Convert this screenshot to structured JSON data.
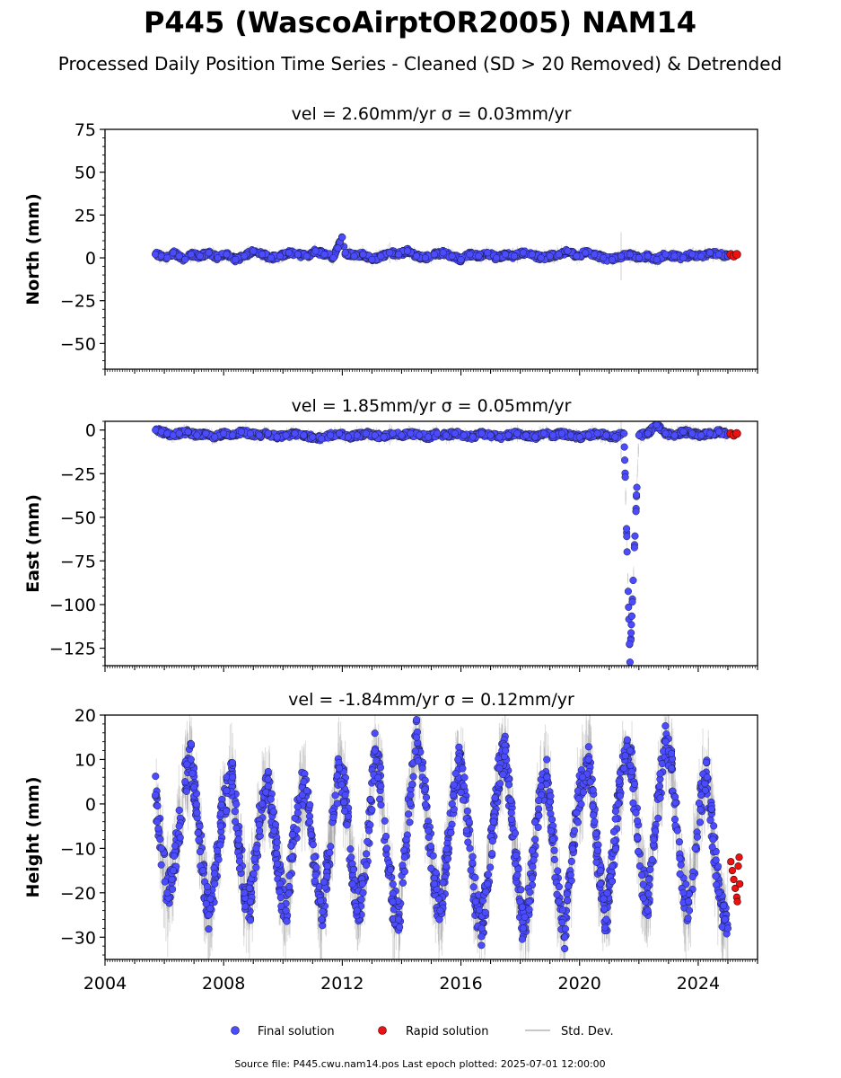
{
  "figure": {
    "title": "P445 (WascoAirptOR2005) NAM14",
    "subtitle": "Processed Daily Position Time Series - Cleaned (SD > 20 Removed) & Detrended",
    "footer": "Source file: P445.cwu.nam14.pos  Last epoch plotted: 2025-07-01 12:00:00"
  },
  "legend": {
    "final": "Final solution",
    "rapid": "Rapid solution",
    "std": "Std. Dev."
  },
  "colors": {
    "final": "#4b4bff",
    "rapid": "#ee1111",
    "std": "#9a9a9a",
    "marker_edge": "#1a1a3a"
  },
  "chart_data": [
    {
      "type": "scatter",
      "title": "vel = 2.60mm/yr   σ = 0.03mm/yr",
      "ylabel": "North (mm)",
      "xlim": [
        2004.0,
        2026.0
      ],
      "ylim": [
        -65,
        75
      ],
      "yticks": [
        -50,
        -25,
        0,
        25,
        50,
        75
      ],
      "series": [
        {
          "name": "Final solution",
          "x": [
            2005.7,
            2005.9,
            2006.1,
            2006.3,
            2006.5,
            2006.7,
            2006.9,
            2007.2,
            2007.5,
            2007.8,
            2008.1,
            2008.4,
            2008.7,
            2009.0,
            2009.3,
            2009.6,
            2009.9,
            2010.2,
            2010.5,
            2010.8,
            2011.1,
            2011.4,
            2011.7,
            2012.0,
            2012.1,
            2012.4,
            2012.7,
            2013.0,
            2013.3,
            2013.6,
            2013.9,
            2014.2,
            2014.5,
            2014.8,
            2015.1,
            2015.4,
            2015.7,
            2016.0,
            2016.3,
            2016.6,
            2016.9,
            2017.2,
            2017.5,
            2017.8,
            2018.1,
            2018.4,
            2018.7,
            2019.0,
            2019.3,
            2019.6,
            2019.9,
            2020.2,
            2020.5,
            2020.8,
            2021.1,
            2021.4,
            2021.7,
            2022.0,
            2022.3,
            2022.6,
            2022.9,
            2023.2,
            2023.5,
            2023.8,
            2024.1,
            2024.4,
            2024.7,
            2025.0
          ],
          "y": [
            2,
            1,
            0,
            3,
            1,
            -1,
            2,
            1,
            3,
            0,
            2,
            -1,
            1,
            4,
            2,
            0,
            1,
            3,
            2,
            1,
            4,
            2,
            0,
            12,
            3,
            1,
            2,
            -1,
            1,
            3,
            2,
            4,
            1,
            0,
            2,
            3,
            1,
            -1,
            2,
            1,
            3,
            0,
            2,
            1,
            3,
            2,
            0,
            1,
            2,
            4,
            1,
            3,
            2,
            0,
            -1,
            1,
            2,
            0,
            1,
            -1,
            2,
            1,
            0,
            2,
            1,
            3,
            2,
            1
          ]
        },
        {
          "name": "Rapid solution",
          "x": [
            2025.1,
            2025.2,
            2025.3
          ],
          "y": [
            2,
            1,
            2
          ]
        }
      ]
    },
    {
      "type": "scatter",
      "title": "vel = 1.85mm/yr   σ = 0.05mm/yr",
      "ylabel": "East (mm)",
      "xlim": [
        2004.0,
        2026.0
      ],
      "ylim": [
        -135,
        5
      ],
      "yticks": [
        -125,
        -100,
        -75,
        -50,
        -25,
        0
      ],
      "series": [
        {
          "name": "Final solution",
          "x": [
            2005.7,
            2005.9,
            2006.1,
            2006.3,
            2006.5,
            2006.8,
            2007.1,
            2007.4,
            2007.7,
            2008.0,
            2008.3,
            2008.6,
            2008.9,
            2009.2,
            2009.5,
            2009.8,
            2010.1,
            2010.4,
            2010.7,
            2011.0,
            2011.3,
            2011.6,
            2011.9,
            2012.2,
            2012.5,
            2012.8,
            2013.1,
            2013.4,
            2013.7,
            2014.0,
            2014.3,
            2014.6,
            2014.9,
            2015.2,
            2015.5,
            2015.8,
            2016.1,
            2016.4,
            2016.7,
            2017.0,
            2017.3,
            2017.6,
            2017.9,
            2018.2,
            2018.5,
            2018.8,
            2019.1,
            2019.4,
            2019.7,
            2020.0,
            2020.3,
            2020.6,
            2020.9,
            2021.2,
            2021.5,
            2021.7,
            2022.0,
            2022.3,
            2022.6,
            2022.9,
            2023.2,
            2023.5,
            2023.8,
            2024.1,
            2024.4,
            2024.7,
            2025.0
          ],
          "y": [
            0,
            -1,
            -2,
            -3,
            -2,
            -1,
            -3,
            -2,
            -4,
            -2,
            -3,
            -1,
            -2,
            -3,
            -2,
            -4,
            -3,
            -2,
            -3,
            -4,
            -5,
            -3,
            -2,
            -4,
            -3,
            -2,
            -3,
            -4,
            -2,
            -3,
            -2,
            -3,
            -4,
            -2,
            -3,
            -2,
            -3,
            -4,
            -2,
            -3,
            -4,
            -3,
            -2,
            -3,
            -4,
            -2,
            -3,
            -2,
            -3,
            -4,
            -3,
            -2,
            -3,
            -4,
            -2,
            -133,
            -3,
            -2,
            3,
            -2,
            -3,
            -1,
            -2,
            -3,
            -2,
            -1,
            -2
          ]
        },
        {
          "name": "Rapid solution",
          "x": [
            2025.1,
            2025.2,
            2025.3
          ],
          "y": [
            -2,
            -3,
            -2
          ]
        }
      ]
    },
    {
      "type": "scatter",
      "title": "vel = -1.84mm/yr   σ = 0.12mm/yr",
      "ylabel": "Height (mm)",
      "xlim": [
        2004.0,
        2026.0
      ],
      "ylim": [
        -35,
        20
      ],
      "yticks": [
        -30,
        -20,
        -10,
        0,
        10,
        20
      ],
      "xticks": [
        2004,
        2008,
        2012,
        2016,
        2020,
        2024
      ],
      "series": [
        {
          "name": "Final solution",
          "x": [
            2005.7,
            2005.9,
            2006.1,
            2006.3,
            2006.5,
            2006.7,
            2006.9,
            2007.1,
            2007.3,
            2007.5,
            2007.7,
            2007.9,
            2008.1,
            2008.3,
            2008.5,
            2008.7,
            2008.9,
            2009.1,
            2009.3,
            2009.5,
            2009.7,
            2009.9,
            2010.1,
            2010.3,
            2010.5,
            2010.7,
            2010.9,
            2011.1,
            2011.3,
            2011.5,
            2011.7,
            2011.9,
            2012.1,
            2012.3,
            2012.5,
            2012.7,
            2012.9,
            2013.1,
            2013.3,
            2013.5,
            2013.7,
            2013.9,
            2014.1,
            2014.3,
            2014.5,
            2014.7,
            2014.9,
            2015.1,
            2015.3,
            2015.5,
            2015.7,
            2015.9,
            2016.1,
            2016.3,
            2016.5,
            2016.7,
            2016.9,
            2017.1,
            2017.3,
            2017.5,
            2017.7,
            2017.9,
            2018.1,
            2018.3,
            2018.5,
            2018.7,
            2018.9,
            2019.1,
            2019.3,
            2019.5,
            2019.7,
            2019.9,
            2020.1,
            2020.3,
            2020.5,
            2020.7,
            2020.9,
            2021.1,
            2021.3,
            2021.5,
            2021.7,
            2021.9,
            2022.1,
            2022.3,
            2022.5,
            2022.7,
            2022.9,
            2023.1,
            2023.3,
            2023.5,
            2023.7,
            2023.9,
            2024.1,
            2024.3,
            2024.5,
            2024.7,
            2024.9,
            2025.0
          ],
          "y": [
            2,
            -10,
            -20,
            -15,
            -5,
            5,
            10,
            -2,
            -15,
            -25,
            -18,
            -5,
            3,
            6,
            -8,
            -20,
            -22,
            -10,
            0,
            4,
            -6,
            -18,
            -24,
            -12,
            -2,
            5,
            -4,
            -16,
            -26,
            -14,
            -3,
            8,
            2,
            -12,
            -24,
            -20,
            -6,
            12,
            4,
            -10,
            -22,
            -26,
            -12,
            2,
            15,
            8,
            -6,
            -18,
            -24,
            -14,
            0,
            10,
            4,
            -10,
            -22,
            -28,
            -18,
            -4,
            8,
            12,
            -2,
            -16,
            -28,
            -22,
            -8,
            4,
            6,
            -8,
            -22,
            -30,
            -16,
            -2,
            6,
            10,
            -4,
            -18,
            -26,
            -14,
            0,
            8,
            12,
            -2,
            -16,
            -24,
            -8,
            4,
            14,
            8,
            -6,
            -20,
            -24,
            -10,
            2,
            6,
            -8,
            -20,
            -26,
            -28
          ]
        },
        {
          "name": "Rapid solution",
          "x": [
            2025.1,
            2025.15,
            2025.2,
            2025.25,
            2025.3,
            2025.32,
            2025.35,
            2025.38,
            2025.4
          ],
          "y": [
            -13,
            -15,
            -17,
            -19,
            -21,
            -22,
            -14,
            -12,
            -18
          ]
        }
      ]
    }
  ]
}
